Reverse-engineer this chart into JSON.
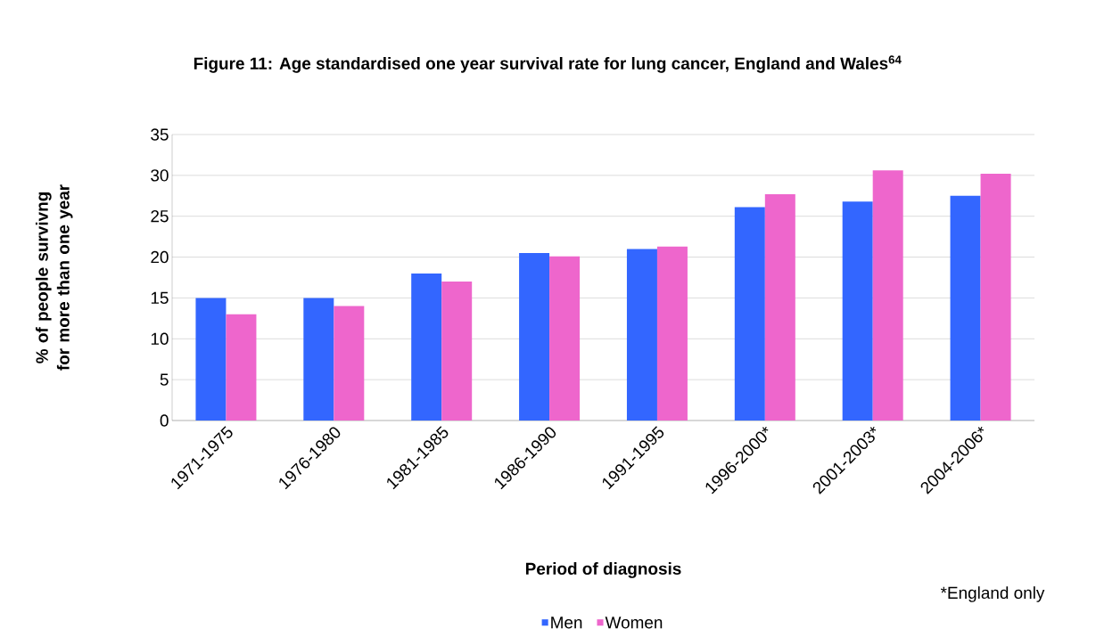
{
  "chart_data": {
    "type": "bar",
    "title": "Figure 11: Age standardised one year survival rate for lung cancer, England and Wales$^{64}$",
    "xlabel": "Period of diagnosis",
    "ylabel": "% of people survivng for more than one year",
    "categories": [
      "1971-1975",
      "1976-1980",
      "1981-1985",
      "1986-1990",
      "1991-1995",
      "1996-2000*",
      "2001-2003*",
      "2004-2006*"
    ],
    "series": [
      {
        "name": "Men",
        "color": "#3366ff",
        "values": [
          15,
          15,
          18,
          20.5,
          21,
          26.1,
          26.8,
          27.5
        ]
      },
      {
        "name": "Women",
        "color": "#ee66cc",
        "values": [
          13,
          14,
          17,
          20.1,
          21.3,
          27.7,
          30.6,
          30.2
        ]
      }
    ],
    "ylim": [
      0,
      35
    ],
    "yticks": [
      0,
      5,
      10,
      15,
      20,
      25,
      30,
      35
    ],
    "grid": "y",
    "legend": "bottom",
    "annotations": [
      "*England only"
    ]
  }
}
